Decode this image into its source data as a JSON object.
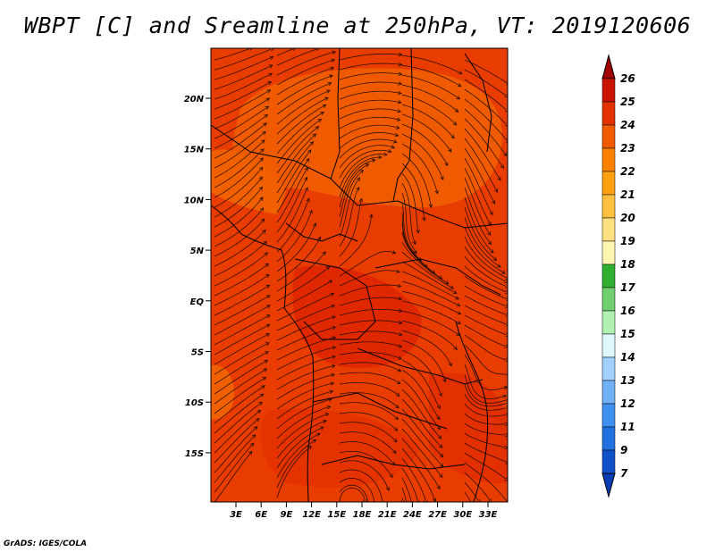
{
  "title": "WBPT [C] and Sreamline at 250hPa, VT: 2019120606",
  "credit": "GrADS: IGES/COLA",
  "lat_labels": [
    "20N",
    "15N",
    "10N",
    "5N",
    "EQ",
    "5S",
    "10S",
    "15S"
  ],
  "lon_labels": [
    "3E",
    "6E",
    "9E",
    "12E",
    "15E",
    "18E",
    "21E",
    "24E",
    "27E",
    "30E",
    "33E"
  ],
  "colorbar": {
    "levels": [
      "26",
      "25",
      "24",
      "23",
      "22",
      "21",
      "20",
      "19",
      "18",
      "17",
      "16",
      "15",
      "14",
      "13",
      "12",
      "11",
      "9",
      "7"
    ],
    "colors": [
      "#a00000",
      "#c81400",
      "#e13200",
      "#f05a00",
      "#fa8200",
      "#ffa010",
      "#ffc040",
      "#ffe080",
      "#fff5b0",
      "#30b030",
      "#70d070",
      "#b0f0b0",
      "#e0f8ff",
      "#a0d0ff",
      "#70b0f5",
      "#4090f0",
      "#2070e0",
      "#1050c8",
      "#0a3cb4"
    ]
  },
  "field_colors": {
    "background": "#e83c00",
    "warm": "#f05a00",
    "hot": "#e02800"
  }
}
